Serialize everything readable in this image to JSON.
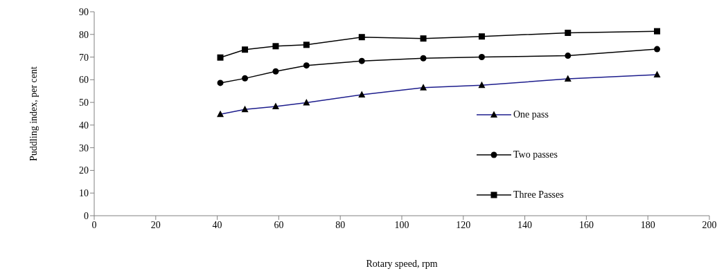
{
  "chart_data": {
    "type": "line",
    "xlabel": "Rotary speed, rpm",
    "ylabel": "Puddling index, per cent",
    "x": [
      41,
      49,
      59,
      69,
      87,
      107,
      126,
      154,
      183
    ],
    "series": [
      {
        "name": "One pass",
        "color": "#1c1c8c",
        "marker": "triangle",
        "values": [
          44.8,
          46.9,
          48.2,
          49.9,
          53.4,
          56.5,
          57.6,
          60.4,
          62.2
        ]
      },
      {
        "name": "Two passes",
        "color": "#000000",
        "marker": "circle",
        "values": [
          58.6,
          60.6,
          63.7,
          66.3,
          68.3,
          69.5,
          70,
          70.6,
          73.5
        ]
      },
      {
        "name": "Three Passes",
        "color": "#000000",
        "marker": "square",
        "values": [
          69.8,
          73.3,
          74.8,
          75.4,
          78.8,
          78.2,
          79.1,
          80.7,
          81.4
        ]
      }
    ],
    "xlim": [
      0,
      200
    ],
    "xticks": [
      0,
      20,
      40,
      60,
      80,
      100,
      120,
      140,
      160,
      180,
      200
    ],
    "ylim": [
      0,
      90
    ],
    "yticks": [
      0,
      10,
      20,
      30,
      40,
      50,
      60,
      70,
      80,
      90
    ],
    "grid": false,
    "legend": "right",
    "line_style": "solid"
  }
}
